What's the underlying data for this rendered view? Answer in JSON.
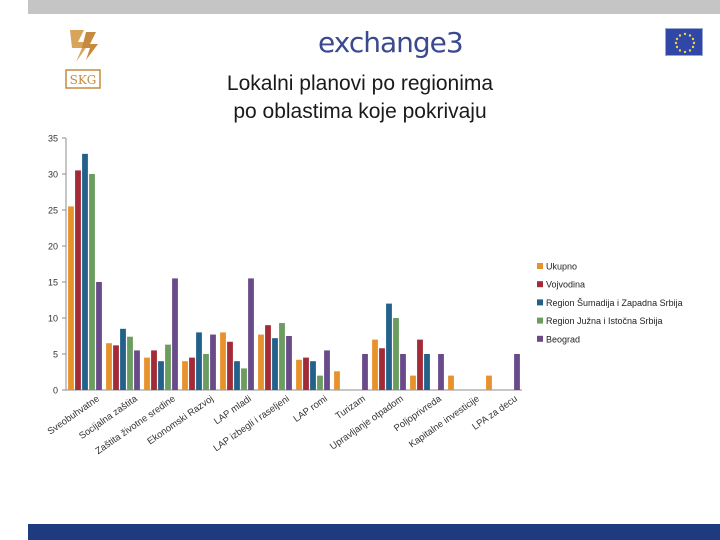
{
  "header": {
    "brand_text": "exchange3",
    "left_logo_text": "SKG"
  },
  "slide": {
    "title_line1": "Lokalni planovi po regionima",
    "title_line2": "po oblastima koje pokrivaju"
  },
  "colors": {
    "Ukupno": "#e8922e",
    "Vojvodina": "#a22b37",
    "Region Šumadija i Zapadna Srbija": "#22628a",
    "Region Južna i Istočna Srbija": "#6a9d5f",
    "Beograd": "#6a4b8a"
  },
  "chart_data": {
    "type": "bar",
    "title": "",
    "xlabel": "",
    "ylabel": "",
    "ylim": [
      0,
      35
    ],
    "yticks": [
      0,
      5,
      10,
      15,
      20,
      25,
      30,
      35
    ],
    "grid": false,
    "legend": "right",
    "categories": [
      "Sveobuhvatne",
      "Socijalna zaštita",
      "Zaštita životne sredine",
      "Ekonomski Razvoj",
      "LAP mladi",
      "LAP izbegli i raseljeni",
      "LAP romi",
      "Turizam",
      "Upravljanje otpadom",
      "Poljoprivreda",
      "Kapitalne investicije",
      "LPA za decu"
    ],
    "series": [
      {
        "name": "Ukupno",
        "values": [
          25.5,
          6.5,
          4.5,
          4,
          8,
          7.7,
          4.2,
          2.6,
          7,
          2,
          2,
          2
        ]
      },
      {
        "name": "Vojvodina",
        "values": [
          30.5,
          6.2,
          5.5,
          4.5,
          6.7,
          9,
          4.5,
          0,
          5.8,
          7,
          0,
          0
        ]
      },
      {
        "name": "Region Šumadija i Zapadna Srbija",
        "values": [
          32.8,
          8.5,
          4,
          8,
          4,
          7.2,
          4,
          0,
          12,
          5,
          0,
          0
        ]
      },
      {
        "name": "Region Južna i Istočna Srbija",
        "values": [
          30,
          7.4,
          6.3,
          5,
          3,
          9.3,
          2,
          0,
          10,
          0,
          0,
          0
        ]
      },
      {
        "name": "Beograd",
        "values": [
          15,
          5.5,
          15.5,
          7.7,
          15.5,
          7.5,
          5.5,
          5,
          5,
          5,
          0,
          5
        ]
      }
    ]
  }
}
